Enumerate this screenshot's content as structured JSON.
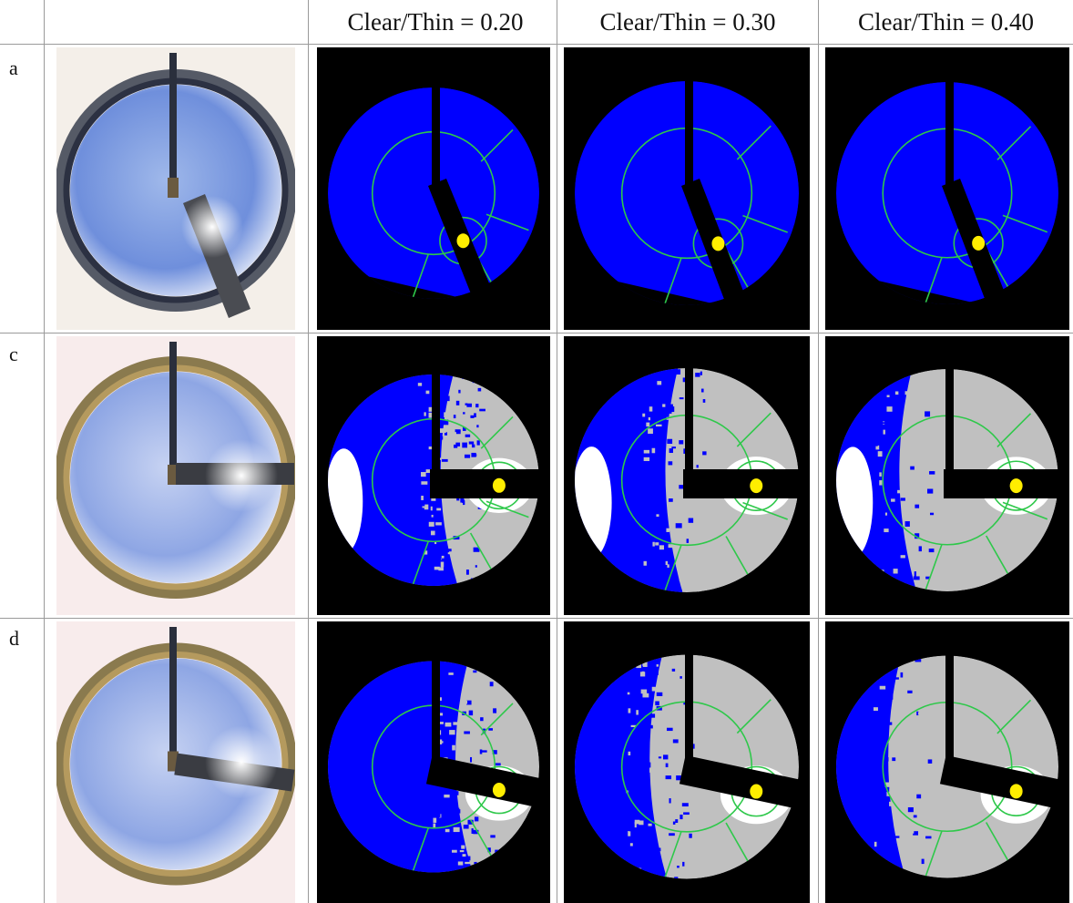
{
  "table": {
    "columns": [
      "",
      "",
      "Clear/Thin = 0.20",
      "Clear/Thin = 0.30",
      "Clear/Thin = 0.40"
    ],
    "rows": [
      {
        "label": "a",
        "variant": "a"
      },
      {
        "label": "c",
        "variant": "c"
      },
      {
        "label": "d",
        "variant": "d"
      }
    ]
  },
  "colors": {
    "clear_sky": "#0000ff",
    "thin_cloud": "#c0c0c0",
    "opaque_cloud": "#ffffff",
    "mask": "#000000",
    "grid_ring": "#2ec84a",
    "sun": "#ffee00"
  }
}
